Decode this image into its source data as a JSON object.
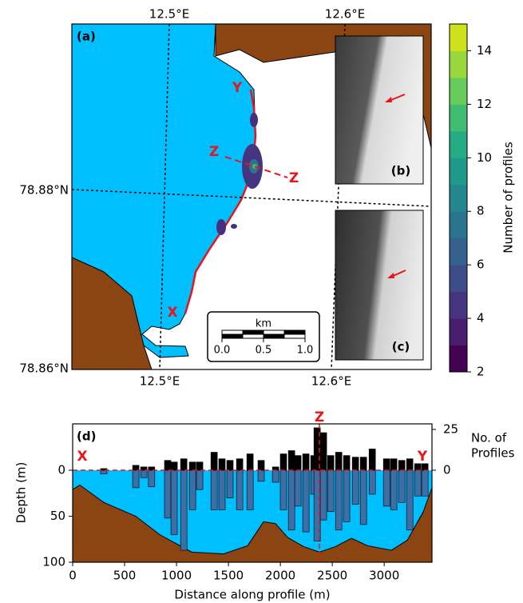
{
  "chart_data": [
    {
      "type": "map",
      "panel_label": "(a)",
      "top_lon_labels": [
        "12.5°E",
        "12.6°E"
      ],
      "bottom_lon_labels": [
        "12.5°E",
        "12.6°E"
      ],
      "lat_labels": [
        "78.88°N",
        "78.86°N"
      ],
      "annotations": [
        "Y",
        "Z",
        "Z",
        "X"
      ],
      "inset_labels": [
        "(b)",
        "(c)"
      ],
      "scale_label": "km",
      "scale_ticks": [
        {
          "value": 0,
          "label": "0.0"
        },
        {
          "value": 0.5,
          "label": "0.5"
        },
        {
          "value": 1,
          "label": "1.0"
        }
      ],
      "colorbar": {
        "label": "Number of profiles",
        "lim": [
          2,
          15
        ],
        "ticks": [
          2,
          4,
          6,
          8,
          10,
          12,
          14
        ],
        "colors": [
          "#440154",
          "#481c6e",
          "#453581",
          "#3d4d8a",
          "#34618d",
          "#2b748e",
          "#24878e",
          "#1f998a",
          "#25ac82",
          "#40bd72",
          "#67cc5c",
          "#98d83e",
          "#cde11d"
        ]
      }
    },
    {
      "type": "bar",
      "panel_label": "(d)",
      "xlabel": "Distance along profile (m)",
      "ylabel": "Depth (m)",
      "y2label_lines": [
        "No. of",
        "Profiles"
      ],
      "annotations": [
        "X",
        "Y",
        "Z",
        "Z"
      ],
      "xlim": [
        0,
        3460
      ],
      "xticks": [
        0,
        500,
        1000,
        1500,
        2000,
        2500,
        3000
      ],
      "ylim": [
        -50.5,
        100
      ],
      "yticks": [
        0,
        50,
        100
      ],
      "y_inverted": true,
      "y2lim": [
        -56.4,
        28.4
      ],
      "y2ticks": [
        0,
        25
      ],
      "x": [
        300,
        608,
        685,
        760,
        915,
        977,
        1070,
        1154,
        1223,
        1362,
        1438,
        1515,
        1608,
        1708,
        1815,
        1954,
        2030,
        2108,
        2169,
        2246,
        2323,
        2354,
        2415,
        2485,
        2562,
        2638,
        2723,
        2800,
        2885,
        3023,
        3092,
        3169,
        3246,
        3323,
        3392
      ],
      "series": [
        {
          "color": "#000000",
          "axis": "y2",
          "values": [
            1,
            3,
            2,
            2,
            6,
            5,
            7,
            5,
            5,
            11,
            7,
            6,
            7,
            10,
            6,
            2,
            10,
            12,
            9,
            10,
            9,
            26,
            23,
            9,
            11,
            9,
            8,
            8,
            13,
            7,
            7,
            6,
            7,
            4,
            4
          ]
        },
        {
          "color": "#3d6fa6",
          "values": [
            4,
            19,
            8,
            18,
            52,
            70,
            87,
            43,
            21,
            43,
            43,
            30,
            43,
            43,
            12,
            13,
            43,
            65,
            39,
            67,
            26,
            77,
            54,
            45,
            65,
            56,
            37,
            59,
            26,
            39,
            43,
            35,
            65,
            28,
            28
          ]
        }
      ],
      "seabed": {
        "color": "#8b4513",
        "x": [
          0,
          69,
          300,
          608,
          838,
          1146,
          1454,
          1685,
          1838,
          1954,
          2069,
          2223,
          2377,
          2531,
          2685,
          2838,
          3069,
          3223,
          3377,
          3460
        ],
        "values": [
          21,
          16,
          35,
          50,
          70,
          89,
          91,
          82,
          56,
          58,
          73,
          83,
          89,
          83,
          74,
          82,
          87,
          76,
          45,
          19
        ]
      }
    }
  ]
}
